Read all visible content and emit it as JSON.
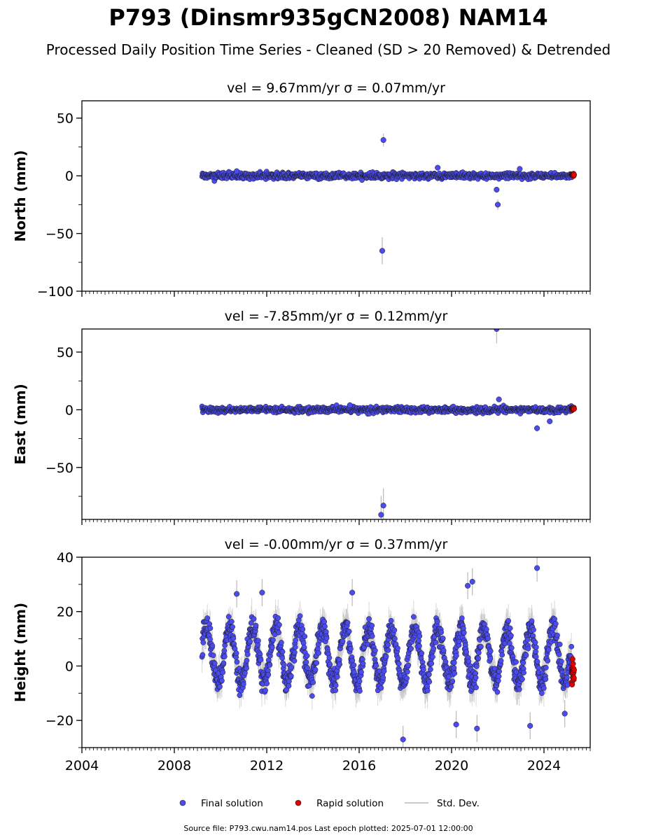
{
  "chart_data": {
    "type": "scatter",
    "title": "P793 (Dinsmr935gCN2008) NAM14",
    "subtitle": "Processed Daily Position Time Series - Cleaned (SD > 20 Removed) & Detrended",
    "xlim": [
      2004,
      2026
    ],
    "x_ticks": [
      "2004",
      "2008",
      "2012",
      "2016",
      "2020",
      "2024"
    ],
    "legend": {
      "placement": "bottom-center",
      "entries": [
        "Final solution",
        "Rapid solution",
        "Std. Dev."
      ]
    },
    "colors": {
      "final": "#4b4bf0",
      "rapid": "#e00000",
      "std_dev": "#b8b8b8"
    },
    "footer": "Source file: P793.cwu.nam14.pos  Last epoch plotted: 2025-07-01 12:00:00",
    "data_span": {
      "start": 2009.2,
      "end": 2025.3,
      "rapid_start": 2025.2
    },
    "panels": [
      {
        "ylabel": "North (mm)",
        "annotation": "vel = 9.67mm/yr   σ = 0.07mm/yr",
        "ylim": [
          -100,
          65
        ],
        "y_ticks": [
          "50",
          "0",
          "−50",
          "−100"
        ],
        "spread": 2.0,
        "outliers": [
          [
            2017.05,
            31
          ],
          [
            2017.0,
            -65
          ],
          [
            2021.95,
            -12
          ],
          [
            2022.0,
            -25
          ],
          [
            2019.4,
            7
          ],
          [
            2022.95,
            6
          ],
          [
            2010.7,
            4
          ]
        ]
      },
      {
        "ylabel": "East (mm)",
        "annotation": "vel = -7.85mm/yr   σ = 0.12mm/yr",
        "ylim": [
          -95,
          70
        ],
        "y_ticks": [
          "50",
          "0",
          "−50"
        ],
        "spread": 2.0,
        "outliers": [
          [
            2021.95,
            70
          ],
          [
            2022.05,
            9
          ],
          [
            2017.05,
            -83
          ],
          [
            2016.95,
            -91
          ],
          [
            2023.7,
            -16
          ],
          [
            2024.25,
            -10
          ],
          [
            2015.6,
            4
          ]
        ]
      },
      {
        "ylabel": "Height (mm)",
        "annotation": "vel = -0.00mm/yr   σ = 0.37mm/yr",
        "ylim": [
          -30,
          40
        ],
        "y_ticks": [
          "40",
          "20",
          "0",
          "−20"
        ],
        "spread": 8.0,
        "outliers": [
          [
            2023.7,
            36
          ],
          [
            2020.9,
            31
          ],
          [
            2020.7,
            29.5
          ],
          [
            2015.7,
            27
          ],
          [
            2011.8,
            27
          ],
          [
            2010.7,
            26.5
          ],
          [
            2017.9,
            -27
          ],
          [
            2023.4,
            -22
          ],
          [
            2021.1,
            -23
          ],
          [
            2020.2,
            -21.5
          ],
          [
            2024.9,
            -17.5
          ]
        ]
      }
    ]
  }
}
